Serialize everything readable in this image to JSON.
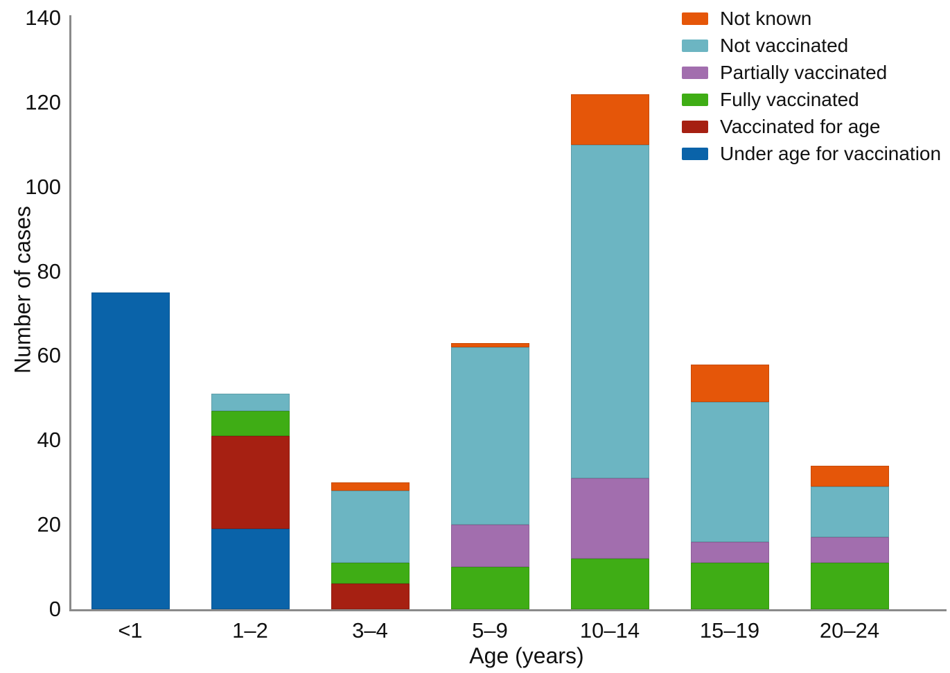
{
  "chart_data": {
    "type": "bar",
    "stacked": true,
    "title": "",
    "xlabel": "Age (years)",
    "ylabel": "Number of cases",
    "ylim": [
      0,
      140
    ],
    "yticks": [
      0,
      20,
      40,
      60,
      80,
      100,
      120,
      140
    ],
    "grid": false,
    "categories": [
      "<1",
      "1–2",
      "3–4",
      "5–9",
      "10–14",
      "15–19",
      "20–24"
    ],
    "series": [
      {
        "name": "Under age for vaccination",
        "color": "#0a63a9",
        "values": [
          75,
          19,
          0,
          0,
          0,
          0,
          0
        ]
      },
      {
        "name": "Vaccinated for age",
        "color": "#a62012",
        "values": [
          0,
          22,
          6,
          0,
          0,
          0,
          0
        ]
      },
      {
        "name": "Fully vaccinated",
        "color": "#3fad15",
        "values": [
          0,
          6,
          5,
          10,
          12,
          11,
          11
        ]
      },
      {
        "name": "Partially vaccinated",
        "color": "#a26eae",
        "values": [
          0,
          0,
          0,
          10,
          19,
          5,
          6
        ]
      },
      {
        "name": "Not vaccinated",
        "color": "#6cb5c2",
        "values": [
          0,
          4,
          17,
          42,
          79,
          33,
          12
        ]
      },
      {
        "name": "Not known",
        "color": "#e55609",
        "values": [
          0,
          0,
          2,
          1,
          12,
          9,
          5
        ]
      }
    ],
    "legend": {
      "position": "top-right",
      "entries": [
        "Not known",
        "Not vaccinated",
        "Partially vaccinated",
        "Fully vaccinated",
        "Vaccinated for age",
        "Under age for vaccination"
      ]
    }
  }
}
